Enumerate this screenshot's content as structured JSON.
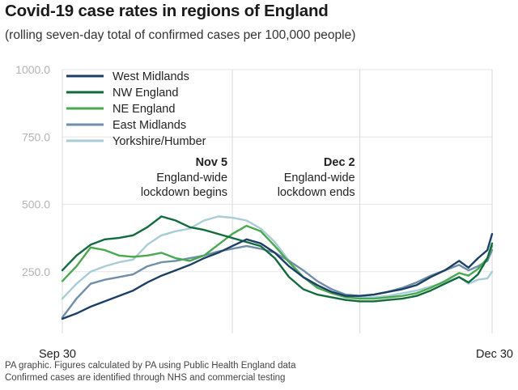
{
  "chart_data": {
    "type": "line",
    "title": "Covid-19 case rates in regions of England",
    "subtitle": "(rolling seven-day total of confirmed cases per 100,000 people)",
    "xlabel": "",
    "ylabel": "",
    "x_start_label": "Sep 30",
    "x_end_label": "Dec 30",
    "x_range_days": [
      0,
      91
    ],
    "ylim": [
      0,
      1000
    ],
    "yticks": [
      250,
      500,
      750,
      1000
    ],
    "ytick_labels": [
      "250.0",
      "500.0",
      "750.0",
      "1000.0"
    ],
    "legend_position": "top-left",
    "annotations": [
      {
        "day": 36,
        "title": "Nov 5",
        "lines": [
          "England-wide",
          "lockdown begins"
        ]
      },
      {
        "day": 63,
        "title": "Dec 2",
        "lines": [
          "England-wide",
          "lockdown ends"
        ]
      }
    ],
    "x": [
      0,
      3,
      6,
      9,
      12,
      15,
      18,
      21,
      24,
      27,
      30,
      33,
      36,
      39,
      42,
      45,
      48,
      51,
      54,
      57,
      60,
      63,
      66,
      69,
      72,
      75,
      78,
      81,
      84,
      86,
      88,
      90,
      91
    ],
    "series": [
      {
        "name": "West Midlands",
        "color": "#1c3f66",
        "values": [
          75,
          95,
          120,
          140,
          160,
          180,
          210,
          235,
          255,
          275,
          300,
          320,
          345,
          370,
          355,
          320,
          270,
          230,
          200,
          175,
          160,
          160,
          165,
          175,
          185,
          200,
          230,
          255,
          290,
          265,
          300,
          330,
          390
        ]
      },
      {
        "name": "NW England",
        "color": "#116b3d",
        "values": [
          255,
          310,
          350,
          370,
          375,
          385,
          415,
          455,
          440,
          415,
          405,
          390,
          375,
          360,
          345,
          300,
          230,
          185,
          165,
          155,
          145,
          140,
          140,
          145,
          150,
          160,
          180,
          205,
          230,
          210,
          240,
          300,
          355
        ]
      },
      {
        "name": "NE England",
        "color": "#4aa84f",
        "values": [
          215,
          270,
          340,
          330,
          310,
          305,
          310,
          320,
          300,
          290,
          310,
          350,
          390,
          420,
          400,
          345,
          285,
          230,
          190,
          170,
          155,
          150,
          150,
          155,
          160,
          170,
          190,
          215,
          245,
          235,
          260,
          300,
          345
        ]
      },
      {
        "name": "East Midlands",
        "color": "#6f8eaa",
        "values": [
          80,
          150,
          205,
          220,
          230,
          240,
          270,
          285,
          290,
          300,
          310,
          325,
          335,
          345,
          335,
          320,
          290,
          255,
          215,
          185,
          165,
          160,
          165,
          175,
          190,
          210,
          235,
          255,
          275,
          255,
          270,
          290,
          330
        ]
      },
      {
        "name": "Yorkshire/Humber",
        "color": "#a8ccd8",
        "values": [
          150,
          205,
          250,
          270,
          285,
          295,
          350,
          385,
          400,
          410,
          440,
          455,
          450,
          440,
          410,
          360,
          290,
          230,
          195,
          175,
          160,
          155,
          155,
          160,
          170,
          180,
          195,
          210,
          230,
          205,
          220,
          225,
          250
        ]
      }
    ]
  },
  "footer": {
    "line1": "PA graphic. Figures calculated by PA using Public Health England data",
    "line2": "Confirmed cases are identified through NHS and commercial testing"
  }
}
